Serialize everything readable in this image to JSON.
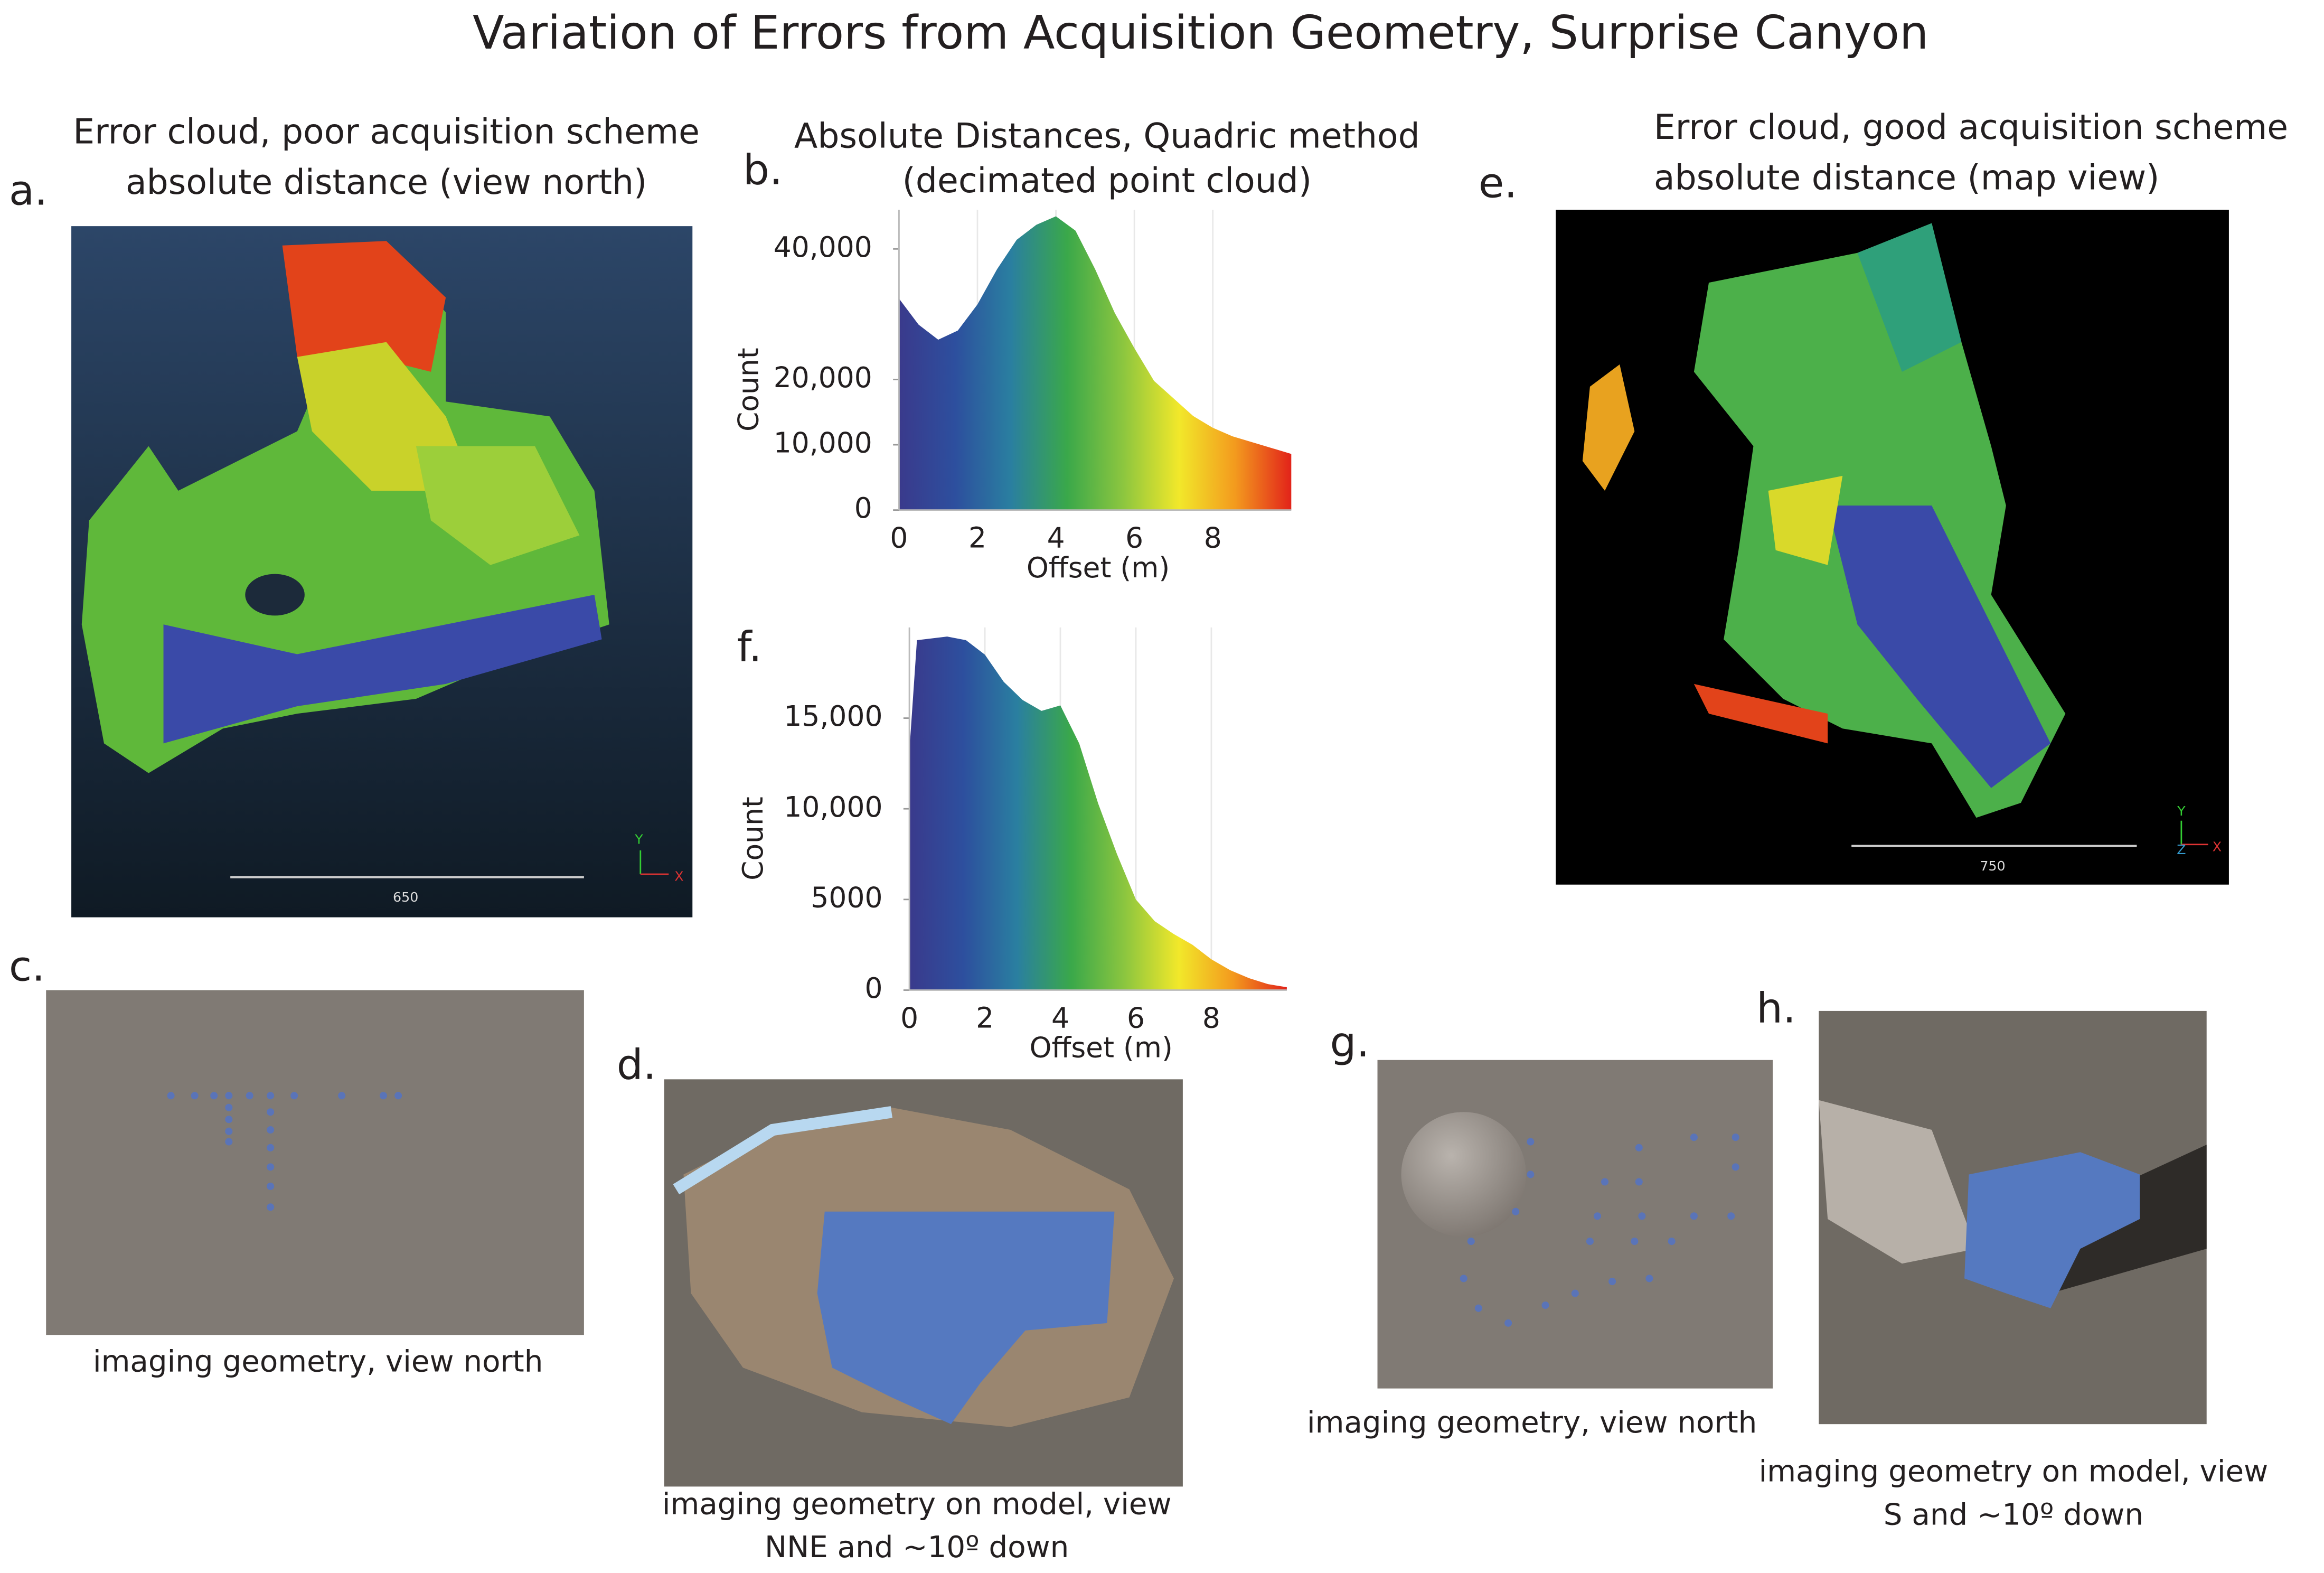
{
  "title": "Variation of Errors from Acquisition Geometry, Surprise Canyon",
  "panels": {
    "a": {
      "label": "a.",
      "title_lines": [
        "Error cloud, poor acquisition scheme",
        "absolute distance (view north)"
      ],
      "scale_label": "650",
      "axis_labels": [
        "Y",
        "X"
      ]
    },
    "b": {
      "label": "b."
    },
    "c": {
      "label": "c.",
      "caption_lines": [
        "imaging geometry, view north"
      ]
    },
    "d": {
      "label": "d.",
      "caption_lines": [
        "imaging geometry on model, view",
        "NNE and ~10º down"
      ]
    },
    "e": {
      "label": "e.",
      "title_lines": [
        "Error cloud, good acquisition scheme",
        "absolute distance (map view)"
      ],
      "scale_label": "750",
      "axis_labels": [
        "Y",
        "Z",
        "X"
      ]
    },
    "f": {
      "label": "f."
    },
    "g": {
      "label": "g.",
      "caption_lines": [
        "imaging geometry, view north"
      ]
    },
    "h": {
      "label": "h.",
      "caption_lines": [
        "imaging geometry on model, view",
        "S and ~10º down"
      ]
    }
  },
  "chart_data": [
    {
      "type": "area",
      "title": "Absolute Distances, Quadric method",
      "subtitle": "(decimated point cloud)",
      "x_label": "Offset (m)",
      "y_label": "Count",
      "x": [
        0,
        0.5,
        1,
        1.5,
        2,
        2.5,
        3,
        3.5,
        4,
        4.5,
        5,
        5.5,
        6,
        6.5,
        7,
        7.5,
        8,
        8.5,
        9,
        9.5,
        10
      ],
      "values": [
        32400,
        28400,
        26100,
        27500,
        31500,
        36900,
        41400,
        43700,
        45000,
        42800,
        36900,
        30200,
        24800,
        19800,
        17100,
        14400,
        12600,
        11300,
        10400,
        9500,
        8600
      ],
      "xlim": [
        0,
        10
      ],
      "ylim": [
        0,
        46000
      ],
      "xticks": [
        0,
        2,
        4,
        6,
        8
      ],
      "yticks": [
        0,
        {
          "value": 10000,
          "label": "10,000"
        },
        {
          "value": 20000,
          "label": "20,000"
        },
        {
          "value": 40000,
          "label": "40,000"
        }
      ],
      "grid": true,
      "colors": [
        "#3a3a8c",
        "#2d4f9e",
        "#2a7fa0",
        "#3aa84a",
        "#8cc63f",
        "#f2e82a",
        "#f39a1e",
        "#e2231a"
      ]
    },
    {
      "type": "area",
      "x_label": "Offset (m)",
      "y_label": "Count",
      "x": [
        0,
        0.2,
        1,
        1.5,
        2,
        2.5,
        3,
        3.5,
        4,
        4.5,
        5,
        5.5,
        6,
        6.5,
        7,
        7.5,
        8,
        8.5,
        9,
        9.5,
        10
      ],
      "values": [
        13200,
        19300,
        19500,
        19300,
        18500,
        17000,
        16000,
        15400,
        15700,
        13600,
        10300,
        7500,
        5000,
        3800,
        3100,
        2500,
        1700,
        1100,
        660,
        330,
        160
      ],
      "xlim": [
        0,
        10
      ],
      "ylim": [
        0,
        20000
      ],
      "xticks": [
        0,
        2,
        4,
        6,
        8
      ],
      "yticks": [
        0,
        5000,
        {
          "value": 10000,
          "label": "10,000"
        },
        {
          "value": 15000,
          "label": "15,000"
        }
      ],
      "grid": true,
      "colors": [
        "#3a3a8c",
        "#2d4f9e",
        "#2a7fa0",
        "#3aa84a",
        "#8cc63f",
        "#f2e82a",
        "#f39a1e",
        "#e2231a"
      ]
    }
  ]
}
